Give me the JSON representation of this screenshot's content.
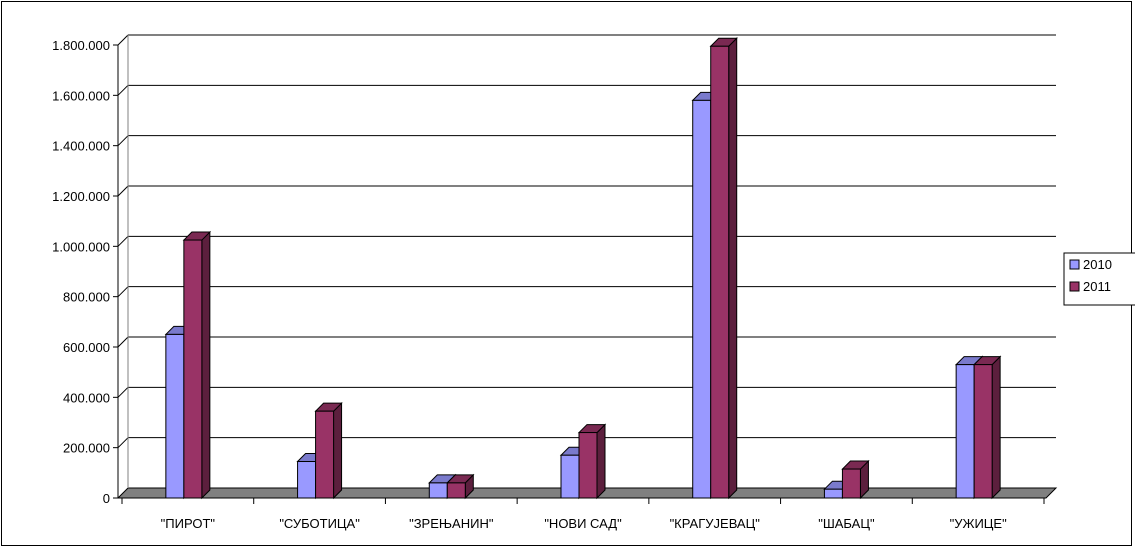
{
  "chart_data": {
    "type": "bar",
    "title": "",
    "xlabel": "",
    "ylabel": "",
    "categories": [
      "\"ПИРОТ\"",
      "\"СУБОТИЦА\"",
      "\"ЗРЕЊАНИН\"",
      "\"НОВИ САД\"",
      "\"КРАГУЈЕВАЦ\"",
      "\"ШАБАЦ\"",
      "\"УЖИЦЕ\""
    ],
    "series": [
      {
        "name": "2010",
        "color": "#9999ff",
        "values": [
          650000,
          145000,
          60000,
          170000,
          1580000,
          35000,
          530000
        ]
      },
      {
        "name": "2011",
        "color": "#993366",
        "values": [
          1025000,
          345000,
          60000,
          260000,
          1795000,
          115000,
          530000
        ]
      }
    ],
    "ylim": [
      0,
      1800000
    ],
    "yticks": [
      0,
      200000,
      400000,
      600000,
      800000,
      1000000,
      1200000,
      1400000,
      1600000,
      1800000
    ],
    "ytick_labels": [
      "0",
      "200.000",
      "400.000",
      "600.000",
      "800.000",
      "1.000.000",
      "1.200.000",
      "1.400.000",
      "1.600.000",
      "1.800.000"
    ],
    "grid": true,
    "legend_position": "right",
    "floor_color": "#808080",
    "style": "3d-clustered-column"
  }
}
